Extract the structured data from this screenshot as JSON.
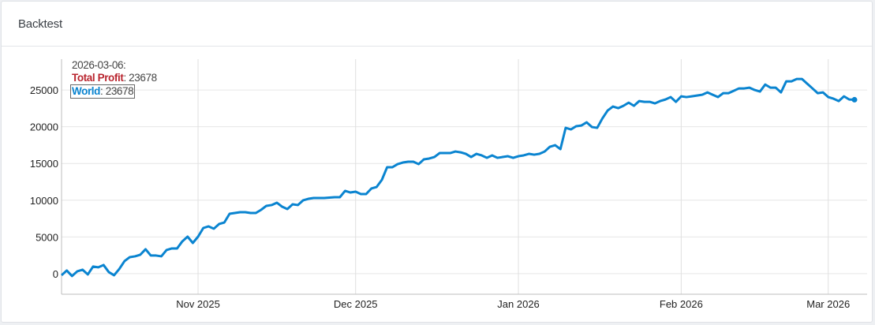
{
  "card": {
    "title": "Backtest"
  },
  "tooltip": {
    "date": "2026-03-06:",
    "rows": [
      {
        "label": "Total Profit",
        "sep": ":",
        "value": "23678",
        "color": "#b9252f"
      },
      {
        "label": "World",
        "sep": ":",
        "value": "23678",
        "color": "#0a84d0"
      }
    ]
  },
  "chart_data": {
    "type": "line",
    "title": "",
    "xlabel": "",
    "ylabel": "",
    "xlim": [
      "2025-10-06",
      "2026-03-06"
    ],
    "ylim": [
      -2800,
      29200
    ],
    "grid": true,
    "y_ticks": [
      0,
      5000,
      10000,
      15000,
      20000,
      25000
    ],
    "y_tick_labels": [
      "0",
      "5000",
      "10000",
      "15000",
      "20000",
      "25000"
    ],
    "x_ticks": [
      "2025-11-01",
      "2025-12-01",
      "2026-01-01",
      "2026-02-01",
      "2026-03-01"
    ],
    "x_tick_labels": [
      "Nov 2025",
      "Dec 2025",
      "Jan 2026",
      "Feb 2026",
      "Mar 2026"
    ],
    "series": [
      {
        "name": "World",
        "color": "#0a84d0",
        "y": [
          -215,
          430,
          -320,
          320,
          540,
          -110,
          970,
          860,
          1180,
          215,
          -215,
          640,
          1720,
          2250,
          2360,
          2580,
          3330,
          2470,
          2470,
          2360,
          3220,
          3430,
          3430,
          4400,
          5040,
          4180,
          5040,
          6220,
          6440,
          6120,
          6760,
          6970,
          8150,
          8260,
          8370,
          8370,
          8260,
          8260,
          8690,
          9230,
          9340,
          9660,
          9120,
          8800,
          9440,
          9340,
          9980,
          10190,
          10300,
          10300,
          10300,
          10350,
          10410,
          10410,
          11270,
          11050,
          11160,
          10840,
          10840,
          11590,
          11800,
          12770,
          14490,
          14490,
          14910,
          15130,
          15240,
          15240,
          14910,
          15560,
          15670,
          15880,
          16420,
          16420,
          16420,
          16630,
          16520,
          16310,
          15880,
          16310,
          16100,
          15770,
          16100,
          15770,
          15880,
          15990,
          15770,
          15990,
          16100,
          16310,
          16200,
          16310,
          16630,
          17280,
          17490,
          16950,
          19850,
          19640,
          20070,
          20170,
          20600,
          19960,
          19850,
          21140,
          22210,
          22750,
          22530,
          22850,
          23280,
          22850,
          23500,
          23390,
          23390,
          23180,
          23500,
          23710,
          24040,
          23390,
          24140,
          24040,
          24140,
          24250,
          24360,
          24680,
          24360,
          24040,
          24570,
          24570,
          24890,
          25220,
          25220,
          25320,
          25000,
          24790,
          25750,
          25320,
          25320,
          24680,
          26180,
          26180,
          26500,
          26500,
          25860,
          25220,
          24570,
          24680,
          24040,
          23820,
          23500,
          24140,
          23710,
          23678
        ]
      }
    ]
  }
}
